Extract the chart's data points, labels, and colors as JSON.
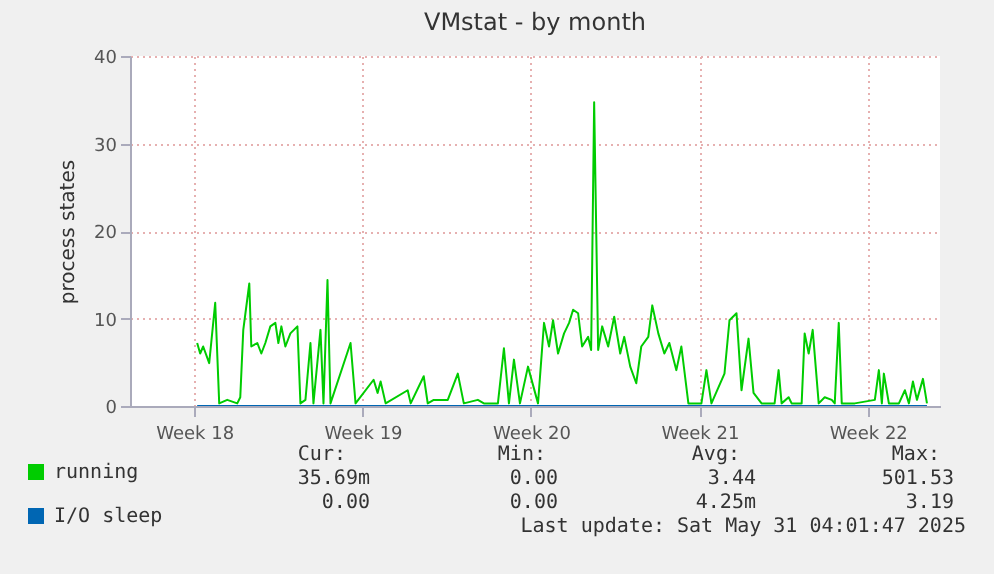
{
  "chart_data": {
    "type": "line",
    "title": "VMstat - by month",
    "ylabel": "process states",
    "xlim": [
      "2025-04-28T20:00",
      "2025-06-01T12:00"
    ],
    "xticks": [
      {
        "value": "2025-05-01T12:00",
        "label": "Week 18"
      },
      {
        "value": "2025-05-08T12:00",
        "label": "Week 19"
      },
      {
        "value": "2025-05-15T12:00",
        "label": "Week 20"
      },
      {
        "value": "2025-05-22T12:00",
        "label": "Week 21"
      },
      {
        "value": "2025-05-29T12:00",
        "label": "Week 22"
      }
    ],
    "ylim": [
      0,
      40
    ],
    "yticks": [
      0,
      10,
      20,
      30,
      40
    ],
    "grid": true,
    "legend": "bottom left",
    "marker": "none",
    "line_style": "solid",
    "series": [
      {
        "name": "running",
        "color": "#00cc00",
        "x": [
          "2025-05-01T15:00",
          "2025-05-01T18:00",
          "2025-05-01T21:00",
          "2025-05-02T03:00",
          "2025-05-02T09:00",
          "2025-05-02T13:00",
          "2025-05-02T21:00",
          "2025-05-03T07:00",
          "2025-05-03T10:00",
          "2025-05-03T13:00",
          "2025-05-03T19:00",
          "2025-05-03T21:00",
          "2025-05-04T03:00",
          "2025-05-04T07:00",
          "2025-05-04T11:00",
          "2025-05-04T16:00",
          "2025-05-04T21:00",
          "2025-05-05T00:00",
          "2025-05-05T03:00",
          "2025-05-05T07:00",
          "2025-05-05T12:00",
          "2025-05-05T19:00",
          "2025-05-05T22:00",
          "2025-05-06T03:00",
          "2025-05-06T08:00",
          "2025-05-06T11:00",
          "2025-05-06T18:00",
          "2025-05-06T21:00",
          "2025-05-07T01:00",
          "2025-05-07T04:00",
          "2025-05-08T00:00",
          "2025-05-08T05:00",
          "2025-05-08T23:00",
          "2025-05-09T03:00",
          "2025-05-09T06:00",
          "2025-05-09T11:00",
          "2025-05-10T09:00",
          "2025-05-10T12:00",
          "2025-05-11T01:00",
          "2025-05-11T05:00",
          "2025-05-11T11:00",
          "2025-05-12T01:00",
          "2025-05-12T11:00",
          "2025-05-12T17:00",
          "2025-05-13T07:00",
          "2025-05-13T13:00",
          "2025-05-14T03:00",
          "2025-05-14T09:00",
          "2025-05-14T14:00",
          "2025-05-14T19:00",
          "2025-05-15T01:00",
          "2025-05-15T09:00",
          "2025-05-15T19:00",
          "2025-05-16T01:00",
          "2025-05-16T06:00",
          "2025-05-16T10:00",
          "2025-05-16T15:00",
          "2025-05-16T21:00",
          "2025-05-17T02:00",
          "2025-05-17T06:00",
          "2025-05-17T11:00",
          "2025-05-17T15:00",
          "2025-05-17T21:00",
          "2025-05-18T00:00",
          "2025-05-18T03:00",
          "2025-05-18T07:00",
          "2025-05-18T11:00",
          "2025-05-18T17:00",
          "2025-05-18T23:00",
          "2025-05-19T05:00",
          "2025-05-19T09:00",
          "2025-05-19T15:00",
          "2025-05-19T21:00",
          "2025-05-20T02:00",
          "2025-05-20T09:00",
          "2025-05-20T13:00",
          "2025-05-20T19:00",
          "2025-05-21T01:00",
          "2025-05-21T06:00",
          "2025-05-21T13:00",
          "2025-05-21T18:00",
          "2025-05-22T01:00",
          "2025-05-22T14:00",
          "2025-05-22T19:00",
          "2025-05-23T00:00",
          "2025-05-23T13:00",
          "2025-05-23T18:00",
          "2025-05-24T01:00",
          "2025-05-24T06:00",
          "2025-05-24T13:00",
          "2025-05-24T18:00",
          "2025-05-25T02:00",
          "2025-05-25T15:00",
          "2025-05-25T19:00",
          "2025-05-25T22:00",
          "2025-05-26T05:00",
          "2025-05-26T08:00",
          "2025-05-26T18:00",
          "2025-05-26T21:00",
          "2025-05-27T01:00",
          "2025-05-27T05:00",
          "2025-05-27T11:00",
          "2025-05-27T17:00",
          "2025-05-28T00:00",
          "2025-05-28T03:00",
          "2025-05-28T07:00",
          "2025-05-28T10:00",
          "2025-05-28T23:00",
          "2025-05-29T19:00",
          "2025-05-29T23:00",
          "2025-05-30T02:00",
          "2025-05-30T04:00",
          "2025-05-30T09:00",
          "2025-05-30T19:00",
          "2025-05-31T01:00",
          "2025-05-31T05:00",
          "2025-05-31T09:00",
          "2025-05-31T13:00",
          "2025-05-31T19:00",
          "2025-05-31T23:00"
        ],
        "values": [
          7.2,
          6.0,
          6.8,
          4.9,
          11.8,
          0.3,
          0.7,
          0.3,
          1.0,
          8.7,
          14.0,
          6.8,
          7.2,
          6.0,
          7.2,
          9.1,
          9.5,
          7.2,
          9.1,
          6.8,
          8.3,
          9.1,
          0.3,
          0.7,
          7.2,
          0.3,
          8.7,
          0.3,
          14.4,
          0.3,
          7.2,
          0.3,
          3.0,
          1.5,
          2.8,
          0.3,
          1.8,
          0.3,
          3.4,
          0.3,
          0.7,
          0.7,
          3.7,
          0.3,
          0.7,
          0.3,
          0.3,
          6.6,
          0.3,
          5.3,
          0.3,
          4.5,
          0.3,
          9.5,
          6.8,
          9.8,
          6.0,
          8.3,
          9.5,
          11.0,
          10.6,
          6.8,
          7.9,
          6.4,
          34.7,
          6.4,
          9.1,
          6.8,
          10.2,
          6.0,
          7.9,
          4.5,
          2.6,
          6.8,
          7.9,
          11.5,
          8.3,
          6.0,
          7.2,
          4.1,
          6.8,
          0.3,
          0.3,
          4.1,
          0.3,
          3.7,
          9.8,
          10.6,
          1.8,
          7.7,
          1.5,
          0.3,
          0.3,
          4.1,
          0.3,
          1.0,
          0.3,
          0.3,
          8.3,
          6.0,
          8.7,
          0.3,
          1.0,
          0.7,
          0.3,
          9.5,
          0.3,
          0.3,
          0.7,
          4.1,
          0.3,
          3.7,
          0.3,
          0.3,
          1.8,
          0.3,
          2.8,
          0.7,
          3.1,
          0.3
        ]
      },
      {
        "name": "I/O sleep",
        "color": "#0066b3",
        "x": [
          "2025-05-01T15:00",
          "2025-05-31T23:00"
        ],
        "values": [
          0,
          0
        ]
      }
    ],
    "annotations": [
      "Cur:",
      "Min:",
      "Avg:",
      "Max:",
      "35.69m",
      "0.00",
      "3.44",
      "501.53",
      "0.00",
      "0.00",
      "4.25m",
      "3.19",
      "Last update: Sat May 31 04:01:47 2025"
    ]
  }
}
